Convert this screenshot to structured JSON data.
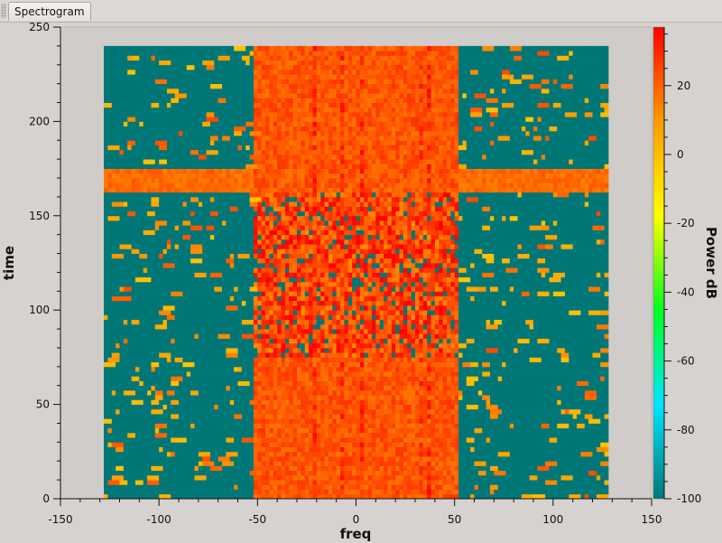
{
  "tab": {
    "label": "Spectrogram"
  },
  "chart_data": {
    "type": "heatmap",
    "title": "",
    "xlabel": "freq",
    "ylabel": "time",
    "xlim": [
      -150,
      150
    ],
    "ylim": [
      0,
      250
    ],
    "x_ticks": [
      -150,
      -100,
      -50,
      0,
      50,
      100,
      150
    ],
    "y_ticks": [
      0,
      50,
      100,
      150,
      200,
      250
    ],
    "data_extent": {
      "x": [
        -128,
        128
      ],
      "y": [
        0,
        239
      ]
    },
    "colorbar": {
      "label": "Power dB",
      "range": [
        -100,
        37
      ],
      "ticks": [
        20,
        0,
        -20,
        -40,
        -60,
        -80,
        -100
      ],
      "colors": [
        "#007777",
        "#00e5ff",
        "#00ff20",
        "#ffff00",
        "#ff9a00",
        "#ff0000"
      ]
    },
    "regions": [
      {
        "label": "band",
        "freq": [
          -52,
          52
        ],
        "time": [
          0,
          239
        ],
        "level_db": 22
      },
      {
        "label": "burst",
        "freq": [
          -128,
          128
        ],
        "time": [
          162,
          175
        ],
        "level_db": 18
      },
      {
        "label": "noise-burst",
        "freq": [
          -52,
          52
        ],
        "time": [
          75,
          162
        ],
        "level_db": 25
      },
      {
        "label": "background",
        "freq": [
          -128,
          128
        ],
        "time": [
          0,
          239
        ],
        "level_db": -100
      }
    ]
  }
}
